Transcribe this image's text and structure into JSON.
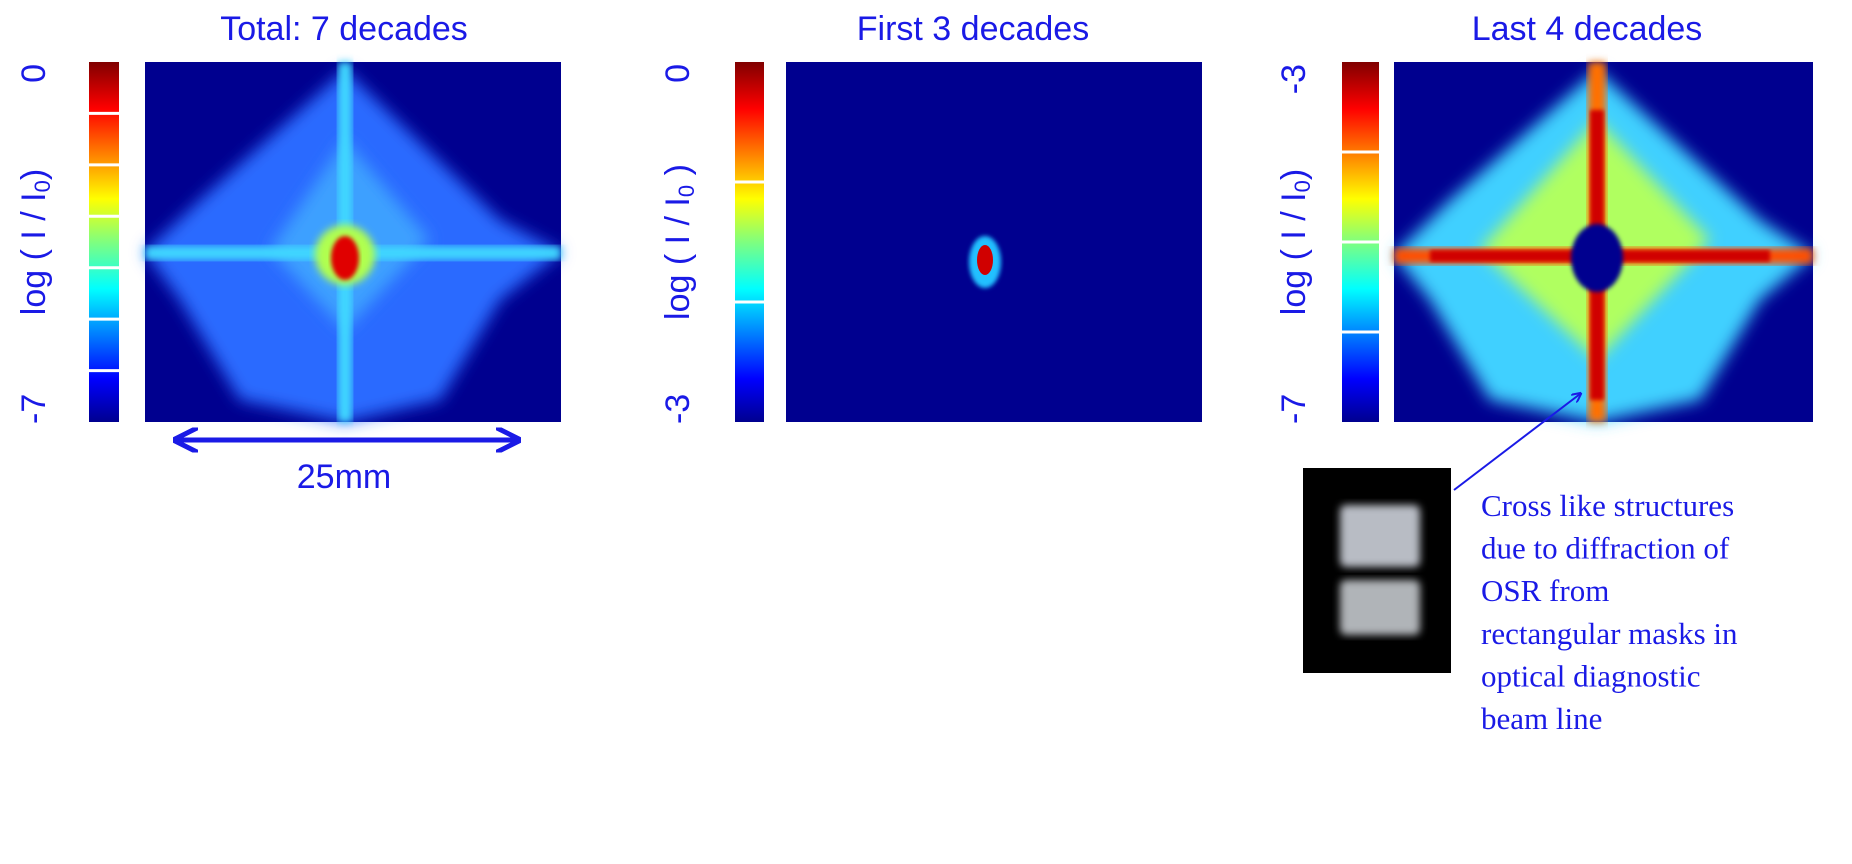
{
  "panels": [
    {
      "title": "Total: 7 decades",
      "colorbar": {
        "top": 0,
        "bottom": -7
      },
      "axis_label": {
        "text": "log  ( I / I",
        "subscript": "0",
        "close": ")"
      }
    },
    {
      "title": "First 3 decades",
      "colorbar": {
        "top": 0,
        "bottom": -3
      },
      "axis_label": {
        "text": "log  ( I / I",
        "subscript": "0",
        "close": " )"
      }
    },
    {
      "title": "Last 4 decades",
      "colorbar": {
        "top": -3,
        "bottom": -7
      },
      "axis_label": {
        "text": "log  ( I / I",
        "subscript": "0",
        "close": ")"
      }
    }
  ],
  "scale_label": "25mm",
  "caption": [
    "Cross like structures",
    "due to diffraction of",
    "OSR from",
    "rectangular masks in",
    "optical diagnostic",
    "beam line"
  ]
}
